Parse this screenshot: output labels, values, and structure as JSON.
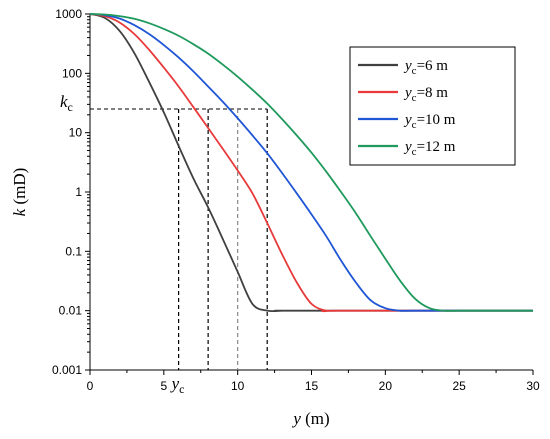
{
  "chart_data": {
    "type": "line",
    "x_axis": {
      "label_var": "y",
      "label_unit": "(m)",
      "range": [
        0,
        30
      ],
      "ticks": [
        0,
        5,
        10,
        15,
        20,
        25,
        30
      ],
      "tick_labels": [
        "0",
        "5",
        "10",
        "15",
        "20",
        "25",
        "30"
      ]
    },
    "y_axis": {
      "label_var": "k",
      "label_unit": "(mD)",
      "scale": "log",
      "range": [
        0.001,
        1000
      ],
      "ticks": [
        0.001,
        0.01,
        0.1,
        1,
        10,
        100,
        1000
      ],
      "tick_labels": [
        "0.001",
        "0.01",
        "0.1",
        "1",
        "10",
        "100",
        "1000"
      ]
    },
    "grid": false,
    "legend_position": "top-right",
    "series": [
      {
        "name_var": "y",
        "name_sub": "c",
        "name_rest": "=6 m",
        "color": "#404040",
        "x": [
          0,
          1,
          2,
          3,
          4,
          5,
          6,
          7,
          8,
          9,
          10,
          11,
          12,
          13,
          14,
          30
        ],
        "y": [
          1000,
          860,
          520,
          220,
          72,
          22,
          6,
          1.7,
          0.55,
          0.16,
          0.045,
          0.013,
          0.01,
          0.01,
          0.01,
          0.01
        ]
      },
      {
        "name_var": "y",
        "name_sub": "c",
        "name_rest": "=8 m",
        "color": "#e8393b",
        "x": [
          0,
          1,
          2,
          3,
          4,
          5,
          6,
          7,
          8,
          9,
          10,
          11,
          12,
          13,
          14,
          15,
          16,
          17,
          30
        ],
        "y": [
          1000,
          920,
          720,
          460,
          250,
          125,
          60,
          27,
          12,
          5.3,
          2.3,
          0.95,
          0.3,
          0.09,
          0.03,
          0.013,
          0.01,
          0.01,
          0.01
        ]
      },
      {
        "name_var": "y",
        "name_sub": "c",
        "name_rest": "=10 m",
        "color": "#1f56d6",
        "x": [
          0,
          1,
          2,
          3,
          4,
          5,
          6,
          7,
          8,
          9,
          10,
          11,
          12,
          13,
          14,
          15,
          16,
          17,
          18,
          19,
          20,
          21,
          22,
          30
        ],
        "y": [
          1000,
          960,
          840,
          650,
          460,
          300,
          185,
          108,
          60,
          33,
          17.5,
          9,
          4.5,
          2.1,
          0.95,
          0.42,
          0.18,
          0.07,
          0.03,
          0.015,
          0.011,
          0.01,
          0.01,
          0.01
        ]
      },
      {
        "name_var": "y",
        "name_sub": "c",
        "name_rest": "=12 m",
        "color": "#1f9a5c",
        "x": [
          0,
          1,
          2,
          3,
          4,
          5,
          6,
          7,
          8,
          9,
          10,
          11,
          12,
          13,
          14,
          15,
          16,
          17,
          18,
          19,
          20,
          21,
          22,
          23,
          24,
          25,
          30
        ],
        "y": [
          1000,
          980,
          920,
          830,
          700,
          560,
          430,
          310,
          215,
          140,
          88,
          53,
          31,
          17,
          9,
          4.6,
          2.2,
          1.0,
          0.44,
          0.18,
          0.075,
          0.032,
          0.016,
          0.011,
          0.01,
          0.01,
          0.01
        ]
      }
    ],
    "annotations": {
      "kc_value": 25,
      "kc_label_var": "k",
      "kc_label_sub": "c",
      "yc_label_var": "y",
      "yc_label_sub": "c",
      "yc_values": [
        6,
        8,
        10,
        12
      ],
      "yc_line_colors": [
        "#000000",
        "#000000",
        "#888888",
        "#000000"
      ]
    }
  }
}
